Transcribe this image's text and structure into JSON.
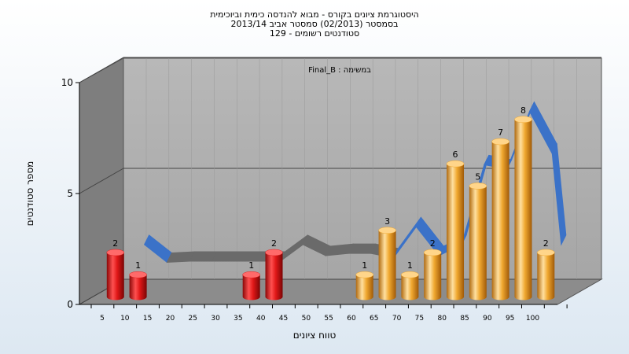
{
  "header": {
    "title_line1": "היסטוגרמת ציונים בקורס - מבוא להנדסה כימית וביוכימית",
    "title_line2": "בסמסטר  (02/2013)  סמסטר אביב 2013/14",
    "title_line3": "סטודנטים רשומים - 129"
  },
  "chart_data": {
    "type": "bar",
    "title": "היסטוגרמת ציונים בקורס - מבוא להנדסה כימית וביוכימית",
    "subtitle": "בסמסטר  (02/2013)  סמסטר אביב 2013/14 | סטודנטים רשומים - 129",
    "legend": "Final_B : במשימה",
    "xlabel": "טווח ציונים",
    "ylabel": "מספר סטודנטים",
    "ylim": [
      0,
      10
    ],
    "yticks": [
      0,
      5,
      10
    ],
    "categories": [
      "5",
      "10",
      "15",
      "20",
      "25",
      "30",
      "35",
      "40",
      "45",
      "50",
      "55",
      "60",
      "65",
      "70",
      "75",
      "80",
      "85",
      "90",
      "95",
      "100"
    ],
    "bars": [
      {
        "x": 5,
        "value": 2,
        "label": "2",
        "color": "#e02020"
      },
      {
        "x": 10,
        "value": 1,
        "label": "1",
        "color": "#e02020"
      },
      {
        "x": 35,
        "value": 1,
        "label": "1",
        "color": "#e02020"
      },
      {
        "x": 40,
        "value": 2,
        "label": "2",
        "color": "#e02020"
      },
      {
        "x": 60,
        "value": 1,
        "label": "1",
        "color": "#f0a830"
      },
      {
        "x": 65,
        "value": 3,
        "label": "3",
        "color": "#f0a830"
      },
      {
        "x": 70,
        "value": 1,
        "label": "1",
        "color": "#f0a830"
      },
      {
        "x": 75,
        "value": 2,
        "label": "2",
        "color": "#f0a830"
      },
      {
        "x": 80,
        "value": 6,
        "label": "6",
        "color": "#f0a830"
      },
      {
        "x": 85,
        "value": 5,
        "label": "5",
        "color": "#f0a830"
      },
      {
        "x": 90,
        "value": 7,
        "label": "7",
        "color": "#f0a830"
      },
      {
        "x": 95,
        "value": 8,
        "label": "8",
        "color": "#f0a830"
      },
      {
        "x": 100,
        "value": 2,
        "label": "2",
        "color": "#f0a830"
      }
    ],
    "ribbon": {
      "points": [
        [
          10,
          2.5
        ],
        [
          15,
          1.7
        ],
        [
          20,
          1.75
        ],
        [
          25,
          1.75
        ],
        [
          30,
          1.75
        ],
        [
          35,
          1.75
        ],
        [
          40,
          1.75
        ],
        [
          45,
          2.5
        ],
        [
          50,
          2.0
        ],
        [
          55,
          2.1
        ],
        [
          60,
          2.1
        ],
        [
          65,
          1.9
        ],
        [
          70,
          3.3
        ],
        [
          75,
          2.0
        ],
        [
          80,
          2.5
        ],
        [
          85,
          6.1
        ],
        [
          90,
          5.9
        ],
        [
          95,
          8.5
        ],
        [
          100,
          6.6
        ],
        [
          102,
          2.5
        ]
      ],
      "color_low": "#6a6a6a",
      "color_high": "#3b72c8"
    },
    "colors": {
      "wall": "#a8a8a8",
      "side_wall": "#808080",
      "floor": "#8a8a8a",
      "fail_bar": "#e02020",
      "pass_bar": "#f0a830"
    }
  }
}
